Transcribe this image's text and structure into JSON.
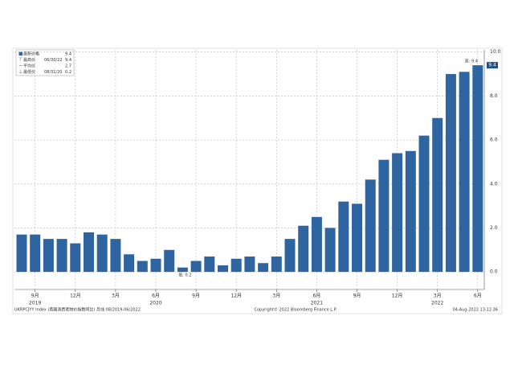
{
  "chart_data": {
    "type": "bar",
    "categories": [
      null,
      "9月",
      null,
      null,
      "12月",
      null,
      null,
      "3月",
      null,
      null,
      "6月",
      null,
      null,
      "9月",
      null,
      null,
      "12月",
      null,
      null,
      "3月",
      null,
      null,
      "6月",
      null,
      null,
      "9月",
      null,
      null,
      "12月",
      null,
      null,
      "3月",
      null,
      null,
      "6月"
    ],
    "values": [
      1.7,
      1.7,
      1.5,
      1.5,
      1.3,
      1.8,
      1.7,
      1.5,
      0.8,
      0.5,
      0.6,
      1.0,
      0.2,
      0.5,
      0.7,
      0.3,
      0.6,
      0.7,
      0.4,
      0.7,
      1.5,
      2.1,
      2.5,
      2.0,
      3.2,
      3.1,
      4.2,
      5.1,
      5.4,
      5.5,
      6.2,
      7.0,
      9.0,
      9.1,
      9.4
    ],
    "color": "#2e65a0",
    "ylim": [
      -0.8,
      10.1
    ],
    "yticks": [
      {
        "value": 0,
        "label": "0.0"
      },
      {
        "value": 2,
        "label": "2.0"
      },
      {
        "value": 4,
        "label": "4.0"
      },
      {
        "value": 6,
        "label": "6.0"
      },
      {
        "value": 8,
        "label": "8.0"
      },
      {
        "value": 10,
        "label": "10.0"
      }
    ],
    "grid": true,
    "year_labels": [
      "2019",
      "2020",
      "2021",
      "2022"
    ],
    "legend": [
      {
        "label": "最新价格",
        "value": 9.4
      },
      {
        "label": "最高价",
        "date": "06/30/22",
        "value": 9.4
      },
      {
        "label": "平均价",
        "value": 2.7
      },
      {
        "label": "最低价",
        "date": "08/31/20",
        "value": 0.2
      }
    ],
    "annotations": [
      "高: 9.4",
      "低: 0.2"
    ],
    "footer": [
      "UKRPCJYY Index (英国消费者物价指数同比) 月线 08/2019-06/2022",
      "Copyright© 2022 Bloomberg Finance L.P.",
      "04-Aug-2022 13:12:36"
    ]
  }
}
